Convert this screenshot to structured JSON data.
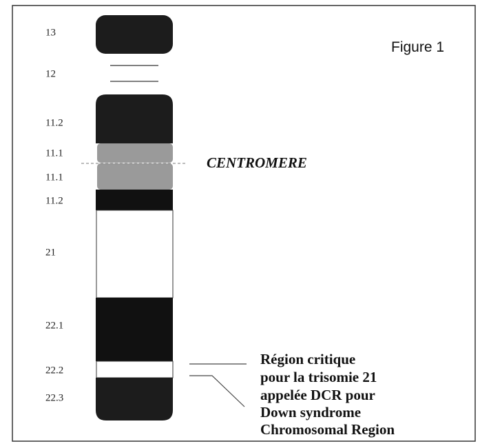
{
  "figure_title": "Figure 1",
  "centromere": "CENTROMERE",
  "bands": [
    "13",
    "12",
    "11.2",
    "11.1",
    "11.1",
    "11.2",
    "21",
    "22.1",
    "22.2",
    "22.3"
  ],
  "note": [
    "Région critique",
    "pour la trisomie 21",
    "appelée DCR pour",
    "Down syndrome",
    "Chromosomal Region"
  ]
}
